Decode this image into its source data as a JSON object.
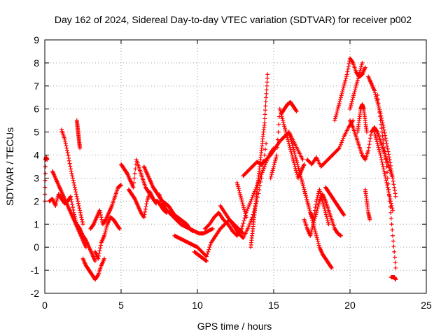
{
  "chart_data": {
    "type": "scatter",
    "title": "Day 162 of 2024, Sidereal Day-to-day VTEC variation (SDTVAR) for receiver p002",
    "xlabel": "GPS time / hours",
    "ylabel": "SDTVAR / TECUs",
    "xlim": [
      0,
      25
    ],
    "ylim": [
      -2,
      9
    ],
    "xticks": [
      "0",
      "5",
      "10",
      "15",
      "20",
      "25"
    ],
    "yticks": [
      "-2",
      "-1",
      "0",
      "1",
      "2",
      "3",
      "4",
      "5",
      "6",
      "7",
      "8",
      "9"
    ],
    "grid": true,
    "marker": "plus",
    "color": "#ff0000",
    "series": [
      {
        "name": "s1",
        "x": [
          0.0,
          0.05,
          0.1,
          0.15
        ],
        "y": [
          2.0,
          3.8,
          3.9,
          3.8
        ]
      },
      {
        "name": "s2",
        "x": [
          0.3,
          0.5,
          0.7,
          0.9,
          1.1,
          1.3,
          1.5,
          1.7,
          1.9,
          2.1,
          2.3,
          2.5,
          2.7,
          2.9,
          3.1,
          3.3
        ],
        "y": [
          2.0,
          2.1,
          1.8,
          2.3,
          2.1,
          1.9,
          2.0,
          2.2,
          1.5,
          1.0,
          0.8,
          0.5,
          0.3,
          0.0,
          -0.3,
          -0.6
        ]
      },
      {
        "name": "s3",
        "x": [
          0.5,
          0.7,
          0.9,
          1.1,
          1.3,
          1.5,
          1.7,
          1.9,
          2.1,
          2.3,
          2.5,
          2.7
        ],
        "y": [
          3.3,
          3.0,
          2.7,
          2.4,
          2.1,
          1.8,
          1.5,
          1.2,
          0.9,
          0.6,
          0.3,
          0.0
        ]
      },
      {
        "name": "s4",
        "x": [
          1.1,
          1.3,
          1.5,
          1.7,
          1.9,
          2.1,
          2.3,
          2.5
        ],
        "y": [
          5.1,
          4.7,
          4.1,
          3.4,
          2.8,
          2.2,
          1.6,
          1.0
        ]
      },
      {
        "name": "s5",
        "x": [
          2.1,
          2.15,
          2.2,
          2.25,
          2.3
        ],
        "y": [
          5.5,
          5.2,
          4.9,
          4.6,
          4.3
        ]
      },
      {
        "name": "s6",
        "x": [
          2.5,
          2.7,
          2.9,
          3.1,
          3.3,
          3.5,
          3.7,
          3.9
        ],
        "y": [
          -0.5,
          -0.8,
          -1.0,
          -1.2,
          -1.4,
          -1.2,
          -0.8,
          -0.5
        ]
      },
      {
        "name": "s7",
        "x": [
          3.0,
          3.2,
          3.4,
          3.6,
          3.8,
          4.0,
          4.2,
          4.4,
          4.6,
          4.8,
          5.0
        ],
        "y": [
          0.8,
          1.0,
          1.3,
          1.6,
          1.0,
          1.2,
          1.5,
          1.8,
          2.2,
          2.6,
          2.7
        ]
      },
      {
        "name": "s8",
        "x": [
          3.3,
          3.5,
          3.7,
          3.9,
          4.1,
          4.3,
          4.5,
          4.7,
          4.9
        ],
        "y": [
          -0.2,
          -0.5,
          0.2,
          0.5,
          1.0,
          1.3,
          1.2,
          1.0,
          0.8
        ]
      },
      {
        "name": "s9",
        "x": [
          5.0,
          5.2,
          5.4,
          5.6,
          5.8,
          6.0,
          6.2,
          6.4,
          6.6,
          6.8,
          7.0,
          7.2,
          7.4,
          7.6,
          7.8,
          8.0
        ],
        "y": [
          3.6,
          3.4,
          3.2,
          2.9,
          2.6,
          3.8,
          3.4,
          3.0,
          2.6,
          2.4,
          2.2,
          2.0,
          2.0,
          1.8,
          1.6,
          1.5
        ]
      },
      {
        "name": "s10",
        "x": [
          5.5,
          5.7,
          5.9,
          6.1,
          6.3,
          6.5,
          6.7,
          6.9,
          7.1,
          7.3
        ],
        "y": [
          2.5,
          2.3,
          2.1,
          1.8,
          1.5,
          1.3,
          2.0,
          2.4,
          2.1,
          1.9
        ]
      },
      {
        "name": "s11",
        "x": [
          6.5,
          6.7,
          6.9,
          7.1,
          7.3,
          7.5,
          7.7,
          7.9,
          8.1,
          8.3,
          8.5,
          8.7,
          8.9,
          9.1,
          9.3,
          9.5,
          9.7
        ],
        "y": [
          3.5,
          3.2,
          2.9,
          2.6,
          2.4,
          2.2,
          2.0,
          1.9,
          1.8,
          1.6,
          1.4,
          1.3,
          1.2,
          1.1,
          1.0,
          0.8,
          0.7
        ]
      },
      {
        "name": "s12",
        "x": [
          7.5,
          7.7,
          8.0,
          8.3,
          8.6,
          8.9,
          9.2,
          9.5,
          9.8,
          10.1,
          10.4,
          10.7,
          11.0
        ],
        "y": [
          2.3,
          1.9,
          1.6,
          1.4,
          1.2,
          1.0,
          0.9,
          0.8,
          0.7,
          0.6,
          0.6,
          0.7,
          0.8
        ]
      },
      {
        "name": "s13",
        "x": [
          8.5,
          8.8,
          9.1,
          9.4,
          9.7,
          10.0,
          10.3,
          10.6,
          10.9,
          11.2,
          11.5,
          11.8,
          12.1,
          12.4,
          12.7,
          13.0
        ],
        "y": [
          0.5,
          0.4,
          0.3,
          0.2,
          0.1,
          0.0,
          -0.2,
          -0.4,
          0.2,
          0.5,
          0.8,
          1.0,
          1.2,
          1.0,
          0.8,
          0.6
        ]
      },
      {
        "name": "s14",
        "x": [
          9.8,
          10.0,
          10.2,
          10.4,
          10.6
        ],
        "y": [
          -0.2,
          -0.3,
          -0.4,
          -0.5,
          -0.6
        ]
      },
      {
        "name": "s15",
        "x": [
          10.5,
          10.8,
          11.1,
          11.4,
          11.7,
          12.0,
          12.3,
          12.6,
          12.9,
          13.2,
          13.5,
          13.8,
          14.1,
          14.4,
          14.7,
          15.0
        ],
        "y": [
          0.8,
          1.0,
          1.3,
          1.5,
          1.2,
          1.0,
          0.7,
          0.5,
          0.8,
          1.5,
          2.0,
          2.5,
          3.0,
          3.5,
          4.0,
          4.3
        ]
      },
      {
        "name": "s16",
        "x": [
          11.5,
          11.8,
          12.1,
          12.4,
          12.7,
          13.0,
          13.3,
          13.6,
          13.9,
          14.2,
          14.5
        ],
        "y": [
          1.8,
          1.5,
          1.2,
          0.9,
          0.6,
          0.4,
          0.8,
          1.3,
          2.0,
          3.0,
          4.5
        ]
      },
      {
        "name": "s17",
        "x": [
          12.6,
          12.8,
          13.0,
          13.2
        ],
        "y": [
          2.8,
          2.3,
          1.8,
          1.3
        ]
      },
      {
        "name": "s18",
        "x": [
          13.5,
          13.6,
          13.7,
          13.8,
          13.9,
          14.0,
          14.1,
          14.2,
          14.3,
          14.4,
          14.5,
          14.6
        ],
        "y": [
          0.0,
          0.6,
          1.2,
          1.8,
          2.4,
          3.0,
          3.6,
          4.2,
          4.8,
          5.4,
          6.5,
          7.5
        ]
      },
      {
        "name": "s19",
        "x": [
          13.0,
          13.3,
          13.6,
          13.9,
          14.2,
          14.5,
          14.8,
          15.1,
          15.4,
          15.7,
          16.0,
          16.3,
          16.6,
          16.9
        ],
        "y": [
          3.1,
          3.3,
          3.5,
          3.7,
          3.6,
          3.8,
          4.0,
          4.3,
          4.6,
          4.8,
          5.0,
          4.6,
          4.2,
          3.8
        ]
      },
      {
        "name": "s20",
        "x": [
          14.8,
          15.0,
          15.2,
          15.4,
          15.6,
          15.8,
          16.0,
          16.2,
          16.4,
          16.6,
          16.8,
          17.0
        ],
        "y": [
          3.0,
          3.5,
          4.0,
          6.0,
          5.5,
          5.0,
          4.5,
          4.0,
          3.5,
          3.0,
          3.3,
          3.6
        ]
      },
      {
        "name": "s21",
        "x": [
          15.5,
          15.7,
          15.9,
          16.1,
          16.3,
          16.5
        ],
        "y": [
          5.8,
          6.0,
          6.2,
          6.3,
          6.1,
          5.9
        ]
      },
      {
        "name": "s22",
        "x": [
          16.0,
          16.2,
          16.4,
          16.6,
          16.8,
          17.0,
          17.2,
          17.4,
          17.6,
          17.8,
          18.0,
          18.2,
          18.4,
          18.6,
          18.8
        ],
        "y": [
          5.0,
          4.5,
          4.0,
          3.5,
          3.0,
          2.5,
          2.0,
          1.5,
          1.0,
          0.5,
          0.0,
          -0.3,
          -0.5,
          -0.7,
          -0.9
        ]
      },
      {
        "name": "s23",
        "x": [
          16.8,
          17.0,
          17.2,
          17.4,
          17.6,
          17.8,
          18.0,
          18.2,
          18.4,
          18.6
        ],
        "y": [
          3.0,
          2.5,
          2.0,
          1.5,
          1.2,
          2.0,
          2.5,
          2.0,
          1.5,
          1.0
        ]
      },
      {
        "name": "s24",
        "x": [
          17.0,
          17.2,
          17.4,
          17.6,
          17.8,
          18.0,
          18.2,
          18.4,
          18.6,
          18.8,
          19.0,
          19.2,
          19.4
        ],
        "y": [
          1.2,
          0.8,
          0.5,
          1.0,
          1.5,
          2.0,
          2.3,
          2.0,
          1.6,
          1.2,
          0.8,
          0.6,
          0.5
        ]
      },
      {
        "name": "s25",
        "x": [
          17.2,
          17.5,
          17.8,
          18.1,
          18.4,
          18.7,
          19.0,
          19.3,
          19.6,
          19.9,
          20.2
        ],
        "y": [
          3.8,
          3.6,
          3.9,
          3.5,
          3.7,
          3.9,
          4.1,
          4.3,
          4.8,
          5.2,
          5.5
        ]
      },
      {
        "name": "s26",
        "x": [
          18.4,
          18.6,
          18.8,
          19.0,
          19.2,
          19.4,
          19.6
        ],
        "y": [
          2.6,
          2.4,
          2.2,
          2.0,
          1.8,
          1.6,
          1.4
        ]
      },
      {
        "name": "s27",
        "x": [
          19.0,
          19.2,
          19.4,
          19.6,
          19.8,
          20.0,
          20.2,
          20.4,
          20.6,
          20.8,
          21.0
        ],
        "y": [
          5.5,
          6.0,
          6.5,
          7.0,
          7.5,
          8.2,
          8.0,
          7.6,
          7.4,
          7.5,
          7.8
        ]
      },
      {
        "name": "s28",
        "x": [
          20.0,
          20.2,
          20.4,
          20.6,
          20.8,
          21.0,
          21.2,
          21.4,
          21.6,
          21.8,
          22.0,
          22.2,
          22.4,
          22.6,
          22.8
        ],
        "y": [
          5.5,
          5.2,
          4.8,
          4.4,
          4.0,
          3.8,
          4.2,
          5.0,
          5.2,
          5.0,
          4.6,
          4.2,
          3.8,
          3.4,
          3.0
        ]
      },
      {
        "name": "s29",
        "x": [
          20.0,
          20.2,
          20.4,
          20.6,
          20.8
        ],
        "y": [
          6.0,
          6.5,
          7.0,
          7.5,
          8.0
        ]
      },
      {
        "name": "s30",
        "x": [
          20.5,
          20.6,
          20.7,
          20.8,
          20.9,
          21.0,
          21.1
        ],
        "y": [
          5.0,
          5.5,
          6.0,
          6.2,
          6.0,
          5.5,
          5.0
        ]
      },
      {
        "name": "s31",
        "x": [
          21.0,
          21.1,
          21.2,
          21.3
        ],
        "y": [
          2.5,
          2.0,
          1.5,
          1.2
        ]
      },
      {
        "name": "s32",
        "x": [
          21.2,
          21.4,
          21.6,
          21.8,
          22.0,
          22.2,
          22.4,
          22.6,
          22.8,
          23.0
        ],
        "y": [
          7.4,
          7.1,
          6.8,
          6.3,
          5.8,
          5.2,
          4.5,
          3.8,
          3.0,
          2.2
        ]
      },
      {
        "name": "s33",
        "x": [
          21.6,
          21.8,
          22.0,
          22.2,
          22.4,
          22.6,
          22.8
        ],
        "y": [
          5.0,
          4.5,
          4.0,
          3.4,
          2.8,
          2.2,
          1.6
        ]
      },
      {
        "name": "s34",
        "x": [
          21.8,
          22.0,
          22.2,
          22.4,
          22.6,
          22.8,
          23.0
        ],
        "y": [
          6.6,
          5.5,
          4.5,
          3.5,
          2.0,
          0.5,
          -0.9
        ]
      },
      {
        "name": "s35",
        "x": [
          22.7,
          22.8,
          22.9,
          23.0
        ],
        "y": [
          -1.3,
          -1.3,
          -1.3,
          -1.4
        ]
      }
    ]
  }
}
